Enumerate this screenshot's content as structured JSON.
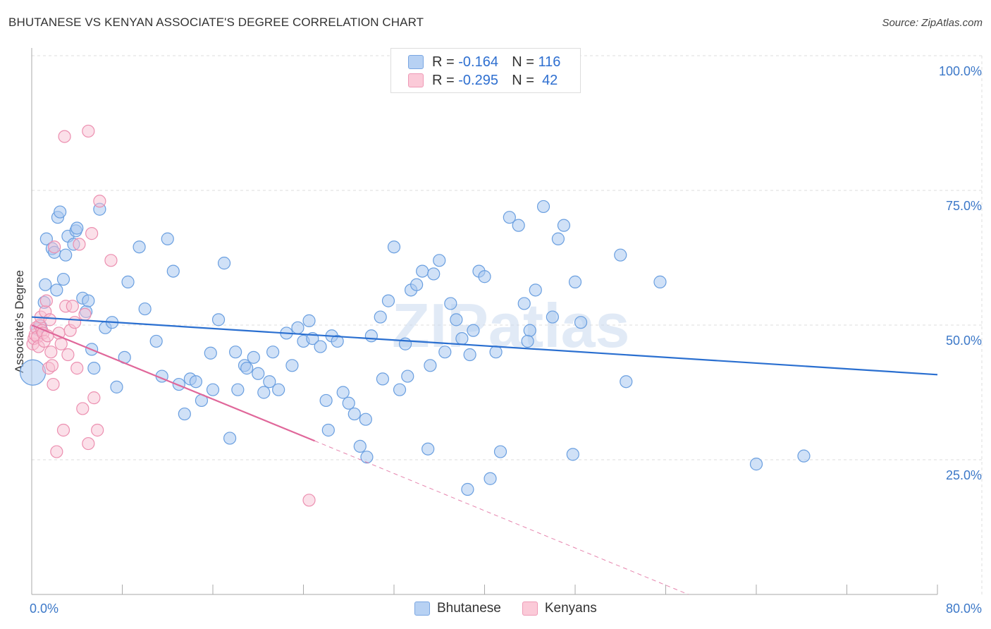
{
  "header": {
    "title": "BHUTANESE VS KENYAN ASSOCIATE'S DEGREE CORRELATION CHART",
    "source": "Source: ZipAtlas.com"
  },
  "watermark": "ZIPatlas",
  "legend": {
    "rows": [
      {
        "r_label": "R =",
        "r_value": "-0.164",
        "n_label": "N =",
        "n_value": "116"
      },
      {
        "r_label": "R =",
        "r_value": "-0.295",
        "n_label": "N =",
        "n_value": "42"
      }
    ]
  },
  "bottom_legend": {
    "bhutanese": "Bhutanese",
    "kenyans": "Kenyans"
  },
  "colors": {
    "blue_fill": "#a9c8f0",
    "blue_stroke": "#6a9fe0",
    "blue_line": "#2a6fd0",
    "pink_fill": "#f8c2d4",
    "pink_stroke": "#ec8fb0",
    "pink_line": "#e0679a",
    "grid": "#dddddd",
    "tick_text": "#3c78c8"
  },
  "chart_data": {
    "type": "scatter",
    "title": "BHUTANESE VS KENYAN ASSOCIATE'S DEGREE CORRELATION CHART",
    "xlabel": "",
    "ylabel": "Associate's Degree",
    "xlim": [
      0,
      80
    ],
    "ylim": [
      0,
      100
    ],
    "x_tick_labels": [
      "0.0%",
      "80.0%"
    ],
    "y_ticks": [
      25,
      50,
      75,
      100
    ],
    "y_tick_labels": [
      "25.0%",
      "50.0%",
      "75.0%",
      "100.0%"
    ],
    "grid": true,
    "series": [
      {
        "name": "Bhutanese",
        "r": -0.164,
        "n": 116,
        "trend": {
          "x0": 0,
          "y0": 51.5,
          "x1": 80,
          "y1": 40.8
        },
        "points": [
          [
            0.1,
            41.2
          ],
          [
            0.5,
            49.2
          ],
          [
            0.8,
            49.8
          ],
          [
            1.1,
            54.2
          ],
          [
            1.2,
            57.5
          ],
          [
            1.3,
            66.0
          ],
          [
            1.8,
            64.2
          ],
          [
            2.0,
            63.5
          ],
          [
            2.2,
            56.5
          ],
          [
            2.3,
            70.0
          ],
          [
            2.5,
            71.0
          ],
          [
            2.8,
            58.5
          ],
          [
            3.0,
            63.0
          ],
          [
            3.2,
            66.5
          ],
          [
            3.7,
            65.0
          ],
          [
            3.9,
            67.5
          ],
          [
            4.0,
            68.0
          ],
          [
            4.5,
            55.0
          ],
          [
            4.8,
            52.5
          ],
          [
            5.0,
            54.5
          ],
          [
            5.3,
            45.5
          ],
          [
            5.5,
            42.0
          ],
          [
            6.0,
            71.5
          ],
          [
            6.5,
            49.5
          ],
          [
            7.1,
            50.5
          ],
          [
            7.5,
            38.5
          ],
          [
            8.2,
            44.0
          ],
          [
            8.5,
            58.0
          ],
          [
            9.5,
            64.5
          ],
          [
            10.0,
            53.0
          ],
          [
            11.0,
            47.0
          ],
          [
            11.5,
            40.5
          ],
          [
            12.0,
            66.0
          ],
          [
            12.5,
            60.0
          ],
          [
            13.0,
            39.0
          ],
          [
            13.5,
            33.5
          ],
          [
            14.0,
            40.0
          ],
          [
            14.5,
            39.5
          ],
          [
            15.0,
            36.0
          ],
          [
            15.8,
            44.8
          ],
          [
            16.0,
            38.0
          ],
          [
            16.5,
            51.0
          ],
          [
            17.0,
            61.5
          ],
          [
            17.5,
            29.0
          ],
          [
            18.0,
            45.0
          ],
          [
            18.2,
            38.0
          ],
          [
            18.8,
            42.5
          ],
          [
            19.0,
            42.0
          ],
          [
            19.6,
            44.0
          ],
          [
            20.0,
            41.0
          ],
          [
            20.5,
            37.5
          ],
          [
            21.0,
            39.5
          ],
          [
            21.3,
            45.0
          ],
          [
            21.8,
            38.0
          ],
          [
            22.5,
            48.5
          ],
          [
            23.0,
            42.5
          ],
          [
            23.5,
            49.5
          ],
          [
            24.0,
            47.0
          ],
          [
            24.5,
            50.8
          ],
          [
            24.8,
            47.5
          ],
          [
            25.5,
            46.0
          ],
          [
            26.0,
            36.0
          ],
          [
            26.5,
            48.0
          ],
          [
            27.0,
            47.0
          ],
          [
            27.5,
            37.5
          ],
          [
            28.5,
            33.5
          ],
          [
            29.0,
            27.5
          ],
          [
            29.5,
            32.5
          ],
          [
            29.6,
            25.5
          ],
          [
            30.0,
            48.0
          ],
          [
            31.0,
            40.0
          ],
          [
            31.5,
            54.5
          ],
          [
            32.0,
            64.5
          ],
          [
            32.5,
            38.0
          ],
          [
            33.0,
            46.5
          ],
          [
            33.5,
            56.5
          ],
          [
            34.0,
            57.5
          ],
          [
            34.5,
            60.0
          ],
          [
            35.0,
            27.0
          ],
          [
            35.5,
            59.5
          ],
          [
            36.0,
            62.0
          ],
          [
            36.5,
            45.0
          ],
          [
            37.0,
            54.0
          ],
          [
            37.5,
            51.0
          ],
          [
            38.0,
            47.5
          ],
          [
            38.5,
            19.5
          ],
          [
            38.7,
            44.5
          ],
          [
            39.0,
            49.0
          ],
          [
            39.5,
            60.0
          ],
          [
            40.0,
            59.0
          ],
          [
            40.5,
            21.5
          ],
          [
            41.0,
            45.0
          ],
          [
            41.4,
            26.5
          ],
          [
            42.2,
            70.0
          ],
          [
            43.0,
            68.5
          ],
          [
            43.5,
            54.0
          ],
          [
            44.0,
            49.0
          ],
          [
            44.5,
            56.5
          ],
          [
            45.2,
            72.0
          ],
          [
            46.0,
            51.5
          ],
          [
            46.5,
            66.0
          ],
          [
            47.0,
            68.5
          ],
          [
            47.8,
            26.0
          ],
          [
            48.0,
            58.0
          ],
          [
            52.0,
            63.0
          ],
          [
            55.5,
            58.0
          ],
          [
            64.0,
            24.2
          ],
          [
            68.2,
            25.7
          ],
          [
            52.5,
            39.5
          ],
          [
            43.8,
            47.0
          ],
          [
            28.0,
            35.5
          ],
          [
            35.2,
            42.5
          ],
          [
            30.8,
            51.5
          ],
          [
            33.2,
            40.5
          ],
          [
            26.2,
            30.5
          ],
          [
            48.5,
            50.5
          ]
        ]
      },
      {
        "name": "Kenyans",
        "r": -0.295,
        "n": 42,
        "trend": {
          "x0": 0,
          "y0": 50.0,
          "x1": 25,
          "y1": 28.5,
          "dash_x1": 58,
          "dash_y1": 0
        },
        "points": [
          [
            0.1,
            46.5
          ],
          [
            0.2,
            47.5
          ],
          [
            0.3,
            48.2
          ],
          [
            0.4,
            49.5
          ],
          [
            0.5,
            47.8
          ],
          [
            0.6,
            46.0
          ],
          [
            0.7,
            50.0
          ],
          [
            0.8,
            51.5
          ],
          [
            0.9,
            49.0
          ],
          [
            1.0,
            48.5
          ],
          [
            1.1,
            47.0
          ],
          [
            1.2,
            52.5
          ],
          [
            1.3,
            54.5
          ],
          [
            1.4,
            48.0
          ],
          [
            1.5,
            42.0
          ],
          [
            1.6,
            51.0
          ],
          [
            1.7,
            45.0
          ],
          [
            1.8,
            42.5
          ],
          [
            1.9,
            39.0
          ],
          [
            2.0,
            64.5
          ],
          [
            2.2,
            26.5
          ],
          [
            2.4,
            48.5
          ],
          [
            2.6,
            46.5
          ],
          [
            2.8,
            30.5
          ],
          [
            3.0,
            53.5
          ],
          [
            3.2,
            44.5
          ],
          [
            3.4,
            49.0
          ],
          [
            3.6,
            53.5
          ],
          [
            3.8,
            50.5
          ],
          [
            4.0,
            42.0
          ],
          [
            4.2,
            65.0
          ],
          [
            4.5,
            34.5
          ],
          [
            4.7,
            52.0
          ],
          [
            5.0,
            28.0
          ],
          [
            5.3,
            67.0
          ],
          [
            5.5,
            36.5
          ],
          [
            5.8,
            30.5
          ],
          [
            6.0,
            73.0
          ],
          [
            7.0,
            62.0
          ],
          [
            2.9,
            85.0
          ],
          [
            5.0,
            86.0
          ],
          [
            24.5,
            17.5
          ]
        ]
      }
    ]
  }
}
